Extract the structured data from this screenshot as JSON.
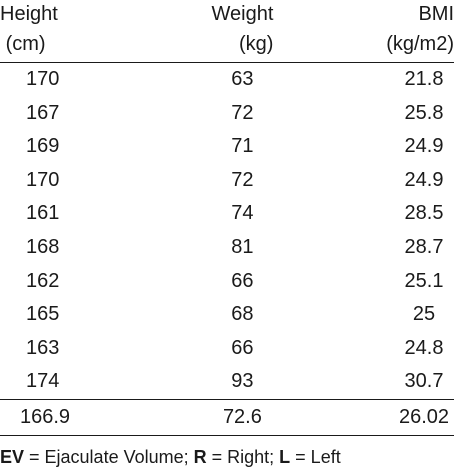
{
  "table": {
    "headers": [
      {
        "line1": "Height",
        "line2": "(cm)"
      },
      {
        "line1": "Weight",
        "line2": "(kg)"
      },
      {
        "line1": "BMI",
        "line2": "(kg/m2)"
      }
    ],
    "rows": [
      {
        "height": "170",
        "weight": "63",
        "bmi": "21.8"
      },
      {
        "height": "167",
        "weight": "72",
        "bmi": "25.8"
      },
      {
        "height": "169",
        "weight": "71",
        "bmi": "24.9"
      },
      {
        "height": "170",
        "weight": "72",
        "bmi": "24.9"
      },
      {
        "height": "161",
        "weight": "74",
        "bmi": "28.5"
      },
      {
        "height": "168",
        "weight": "81",
        "bmi": "28.7"
      },
      {
        "height": "162",
        "weight": "66",
        "bmi": "25.1"
      },
      {
        "height": "165",
        "weight": "68",
        "bmi": "25"
      },
      {
        "height": "163",
        "weight": "66",
        "bmi": "24.8"
      },
      {
        "height": "174",
        "weight": "93",
        "bmi": "30.7"
      }
    ],
    "summary": {
      "height": "166.9",
      "weight": "72.6",
      "bmi": "26.02"
    }
  },
  "footnote": {
    "ev_abbr": "EV",
    "ev_text": " = Ejaculate Volume; ",
    "r_abbr": "R",
    "r_text": " = Right; ",
    "l_abbr": "L",
    "l_text": " = Left"
  }
}
